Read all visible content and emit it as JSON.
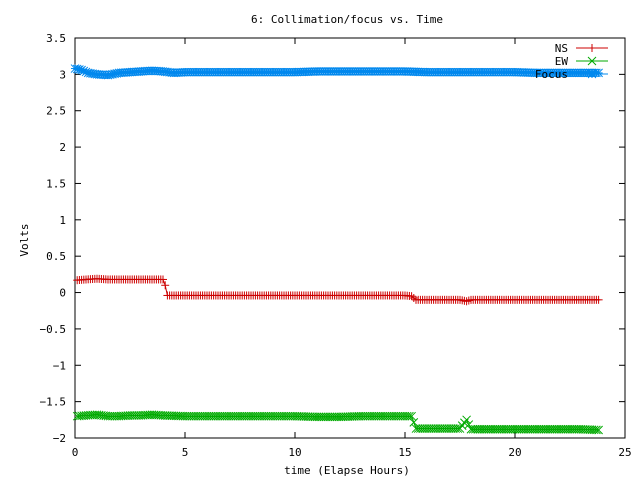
{
  "chart_data": {
    "type": "line",
    "title": "6: Collimation/focus vs. Time",
    "xlabel": "time (Elapse Hours)",
    "ylabel": "Volts",
    "xlim": [
      0,
      25
    ],
    "ylim": [
      -2,
      3.5
    ],
    "xticks": [
      "0",
      "5",
      "10",
      "15",
      "20",
      "25"
    ],
    "yticks": [
      "−2",
      "−1.5",
      "−1",
      "−0.5",
      "0",
      "0.5",
      "1",
      "1.5",
      "2",
      "2.5",
      "3",
      "3.5"
    ],
    "grid": false,
    "legend_position": "top-right",
    "series": [
      {
        "name": "NS",
        "color": "#cc0000",
        "marker": "plus",
        "x": [
          0.1,
          0.5,
          1.0,
          1.5,
          2.0,
          2.5,
          3.0,
          3.5,
          4.0,
          4.1,
          4.2,
          5,
          6,
          7,
          8,
          9,
          10,
          11,
          12,
          13,
          14,
          15,
          15.3,
          15.5,
          16,
          17,
          17.5,
          17.8,
          18,
          19,
          20,
          21,
          22,
          23,
          23.8
        ],
        "y": [
          0.17,
          0.18,
          0.19,
          0.18,
          0.18,
          0.18,
          0.18,
          0.18,
          0.18,
          0.1,
          -0.04,
          -0.04,
          -0.04,
          -0.04,
          -0.04,
          -0.04,
          -0.04,
          -0.04,
          -0.04,
          -0.04,
          -0.04,
          -0.04,
          -0.05,
          -0.1,
          -0.1,
          -0.1,
          -0.1,
          -0.12,
          -0.1,
          -0.1,
          -0.1,
          -0.1,
          -0.1,
          -0.1,
          -0.1
        ]
      },
      {
        "name": "EW",
        "color": "#00aa00",
        "marker": "cross",
        "x": [
          0.1,
          0.5,
          1.0,
          1.5,
          2.0,
          2.5,
          3.0,
          3.5,
          4.0,
          5,
          6,
          7,
          8,
          9,
          10,
          11,
          12,
          13,
          14,
          15,
          15.3,
          15.5,
          16,
          17,
          17.5,
          17.8,
          18,
          19,
          20,
          21,
          22,
          23,
          23.8
        ],
        "y": [
          -1.7,
          -1.69,
          -1.68,
          -1.7,
          -1.7,
          -1.69,
          -1.69,
          -1.68,
          -1.69,
          -1.7,
          -1.7,
          -1.7,
          -1.7,
          -1.7,
          -1.7,
          -1.71,
          -1.71,
          -1.7,
          -1.7,
          -1.7,
          -1.7,
          -1.87,
          -1.87,
          -1.87,
          -1.87,
          -1.75,
          -1.88,
          -1.88,
          -1.88,
          -1.88,
          -1.88,
          -1.88,
          -1.89
        ]
      },
      {
        "name": "Focus",
        "color": "#0088ee",
        "marker": "star",
        "x": [
          0.0,
          0.3,
          0.6,
          1.0,
          1.5,
          2.0,
          2.5,
          3.0,
          3.5,
          4.0,
          4.5,
          5,
          6,
          7,
          8,
          9,
          10,
          11,
          12,
          13,
          14,
          15,
          16,
          17,
          18,
          19,
          20,
          21,
          22,
          23,
          23.8
        ],
        "y": [
          3.08,
          3.06,
          3.02,
          3.0,
          2.99,
          3.02,
          3.03,
          3.04,
          3.05,
          3.04,
          3.02,
          3.03,
          3.03,
          3.03,
          3.03,
          3.03,
          3.03,
          3.04,
          3.04,
          3.04,
          3.04,
          3.04,
          3.03,
          3.03,
          3.03,
          3.03,
          3.03,
          3.02,
          3.02,
          3.02,
          3.02
        ]
      }
    ]
  }
}
